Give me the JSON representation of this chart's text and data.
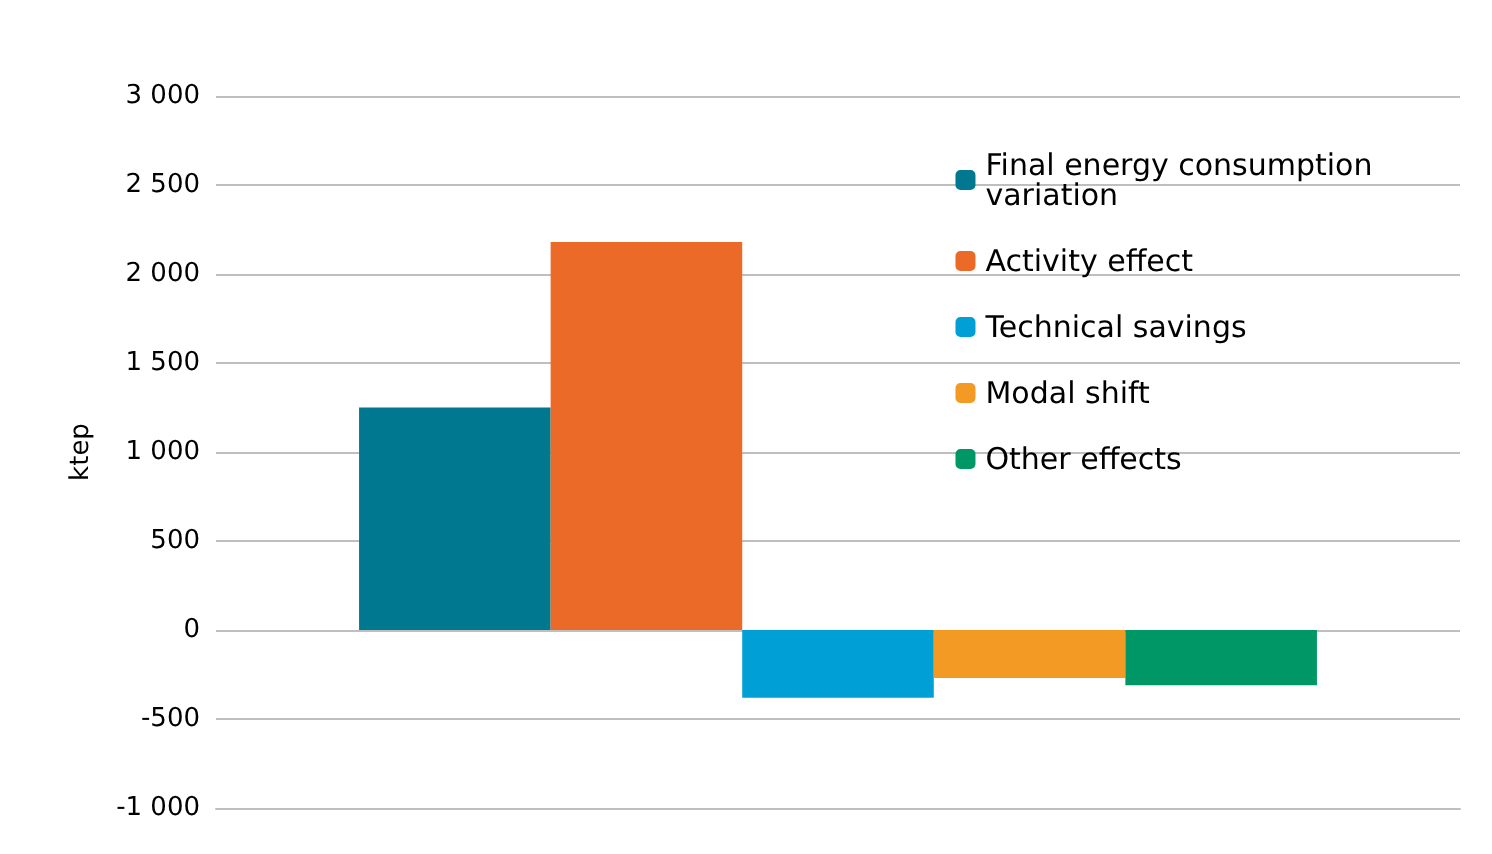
{
  "chart_data": {
    "type": "bar",
    "ylabel": "ktep",
    "categories": [
      null
    ],
    "series": [
      {
        "name": "Final energy consumption variation",
        "color": "#00788f",
        "values": [
          1250
        ]
      },
      {
        "name": "Activity effect",
        "color": "#ec6a28",
        "values": [
          2180
        ]
      },
      {
        "name": "Technical savings",
        "color": "#00a0d6",
        "values": [
          -380
        ]
      },
      {
        "name": "Modal shift",
        "color": "#f39a25",
        "values": [
          -270
        ]
      },
      {
        "name": "Other effects",
        "color": "#009767",
        "values": [
          -310
        ]
      }
    ],
    "ylim": [
      -1000,
      3000
    ],
    "yticks": [
      {
        "value": -1000,
        "label": "-1 000"
      },
      -500,
      0,
      500,
      {
        "value": 1000,
        "label": "1 000"
      },
      {
        "value": 1500,
        "label": "1 500"
      },
      {
        "value": 2000,
        "label": "2 000"
      },
      {
        "value": 2500,
        "label": "2 500"
      },
      {
        "value": 3000,
        "label": "3 000"
      }
    ],
    "grid": "y",
    "legend": "top right"
  }
}
